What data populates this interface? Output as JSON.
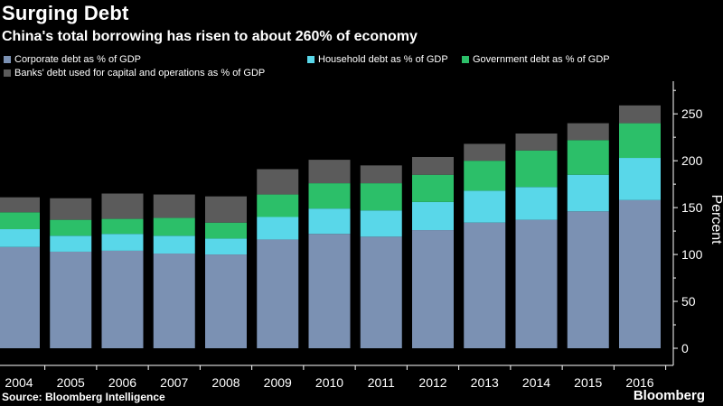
{
  "header": {
    "title": "Surging Debt",
    "subtitle": "China's total borrowing has risen to about 260% of economy"
  },
  "footer": {
    "source": "Source: Bloomberg Intelligence",
    "brand": "Bloomberg"
  },
  "chart_data": {
    "type": "bar",
    "stacked": true,
    "categories": [
      "2004",
      "2005",
      "2006",
      "2007",
      "2008",
      "2009",
      "2010",
      "2011",
      "2012",
      "2013",
      "2014",
      "2015",
      "2016"
    ],
    "series": [
      {
        "name": "Corporate debt as % of GDP",
        "color": "#7b91b3",
        "values": [
          108,
          103,
          104,
          101,
          100,
          116,
          122,
          119,
          126,
          134,
          137,
          146,
          158
        ]
      },
      {
        "name": "Household debt as % of GDP",
        "color": "#59d7e9",
        "values": [
          19,
          17,
          18,
          19,
          17,
          24,
          27,
          28,
          30,
          34,
          35,
          39,
          45
        ]
      },
      {
        "name": "Government debt as % of GDP",
        "color": "#2cbf69",
        "values": [
          18,
          17,
          16,
          19,
          17,
          24,
          27,
          29,
          29,
          32,
          39,
          37,
          37
        ]
      },
      {
        "name": "Banks' debt used for capital and operations as % of GDP",
        "color": "#5b5b5b",
        "values": [
          16,
          23,
          27,
          25,
          28,
          27,
          25,
          19,
          19,
          18,
          18,
          18,
          19
        ]
      }
    ],
    "ylabel": "Percent",
    "ylim": [
      0,
      280
    ],
    "yticks": [
      0,
      50,
      100,
      150,
      200,
      250
    ],
    "y_axis_side": "right",
    "grid": false,
    "legend_position": "top-left"
  }
}
